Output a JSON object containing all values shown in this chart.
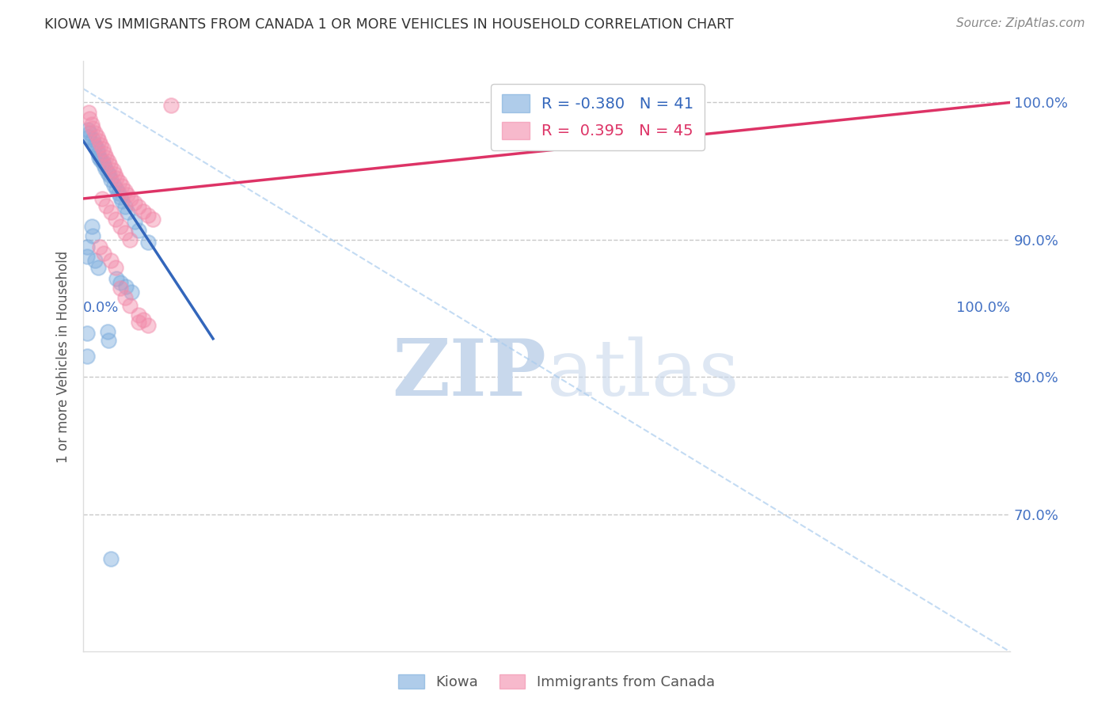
{
  "title": "KIOWA VS IMMIGRANTS FROM CANADA 1 OR MORE VEHICLES IN HOUSEHOLD CORRELATION CHART",
  "source": "Source: ZipAtlas.com",
  "ylabel": "1 or more Vehicles in Household",
  "watermark_zip": "ZIP",
  "watermark_atlas": "atlas",
  "legend_kiowa_R": "-0.380",
  "legend_kiowa_N": "41",
  "legend_canada_R": "0.395",
  "legend_canada_N": "45",
  "kiowa_color": "#7AABDC",
  "canada_color": "#F28BAA",
  "kiowa_scatter": [
    [
      0.005,
      0.98
    ],
    [
      0.006,
      0.975
    ],
    [
      0.007,
      0.978
    ],
    [
      0.01,
      0.973
    ],
    [
      0.012,
      0.97
    ],
    [
      0.013,
      0.968
    ],
    [
      0.015,
      0.966
    ],
    [
      0.016,
      0.963
    ],
    [
      0.017,
      0.96
    ],
    [
      0.019,
      0.958
    ],
    [
      0.021,
      0.957
    ],
    [
      0.022,
      0.955
    ],
    [
      0.024,
      0.952
    ],
    [
      0.026,
      0.949
    ],
    [
      0.028,
      0.947
    ],
    [
      0.03,
      0.944
    ],
    [
      0.033,
      0.94
    ],
    [
      0.036,
      0.937
    ],
    [
      0.038,
      0.934
    ],
    [
      0.04,
      0.931
    ],
    [
      0.042,
      0.928
    ],
    [
      0.045,
      0.924
    ],
    [
      0.048,
      0.92
    ],
    [
      0.055,
      0.913
    ],
    [
      0.06,
      0.907
    ],
    [
      0.07,
      0.898
    ],
    [
      0.009,
      0.91
    ],
    [
      0.01,
      0.903
    ],
    [
      0.004,
      0.895
    ],
    [
      0.004,
      0.888
    ],
    [
      0.013,
      0.885
    ],
    [
      0.016,
      0.88
    ],
    [
      0.036,
      0.872
    ],
    [
      0.04,
      0.869
    ],
    [
      0.046,
      0.866
    ],
    [
      0.052,
      0.862
    ],
    [
      0.026,
      0.833
    ],
    [
      0.027,
      0.827
    ],
    [
      0.004,
      0.832
    ],
    [
      0.004,
      0.815
    ],
    [
      0.03,
      0.668
    ]
  ],
  "canada_scatter": [
    [
      0.006,
      0.993
    ],
    [
      0.007,
      0.988
    ],
    [
      0.009,
      0.984
    ],
    [
      0.01,
      0.981
    ],
    [
      0.013,
      0.978
    ],
    [
      0.015,
      0.975
    ],
    [
      0.017,
      0.972
    ],
    [
      0.019,
      0.969
    ],
    [
      0.021,
      0.966
    ],
    [
      0.023,
      0.963
    ],
    [
      0.025,
      0.96
    ],
    [
      0.027,
      0.957
    ],
    [
      0.029,
      0.954
    ],
    [
      0.032,
      0.951
    ],
    [
      0.034,
      0.948
    ],
    [
      0.036,
      0.945
    ],
    [
      0.039,
      0.942
    ],
    [
      0.042,
      0.939
    ],
    [
      0.045,
      0.936
    ],
    [
      0.048,
      0.933
    ],
    [
      0.051,
      0.93
    ],
    [
      0.055,
      0.927
    ],
    [
      0.06,
      0.924
    ],
    [
      0.065,
      0.921
    ],
    [
      0.07,
      0.918
    ],
    [
      0.075,
      0.915
    ],
    [
      0.02,
      0.93
    ],
    [
      0.025,
      0.925
    ],
    [
      0.03,
      0.92
    ],
    [
      0.035,
      0.915
    ],
    [
      0.04,
      0.91
    ],
    [
      0.045,
      0.905
    ],
    [
      0.05,
      0.9
    ],
    [
      0.018,
      0.895
    ],
    [
      0.022,
      0.89
    ],
    [
      0.03,
      0.885
    ],
    [
      0.035,
      0.88
    ],
    [
      0.04,
      0.865
    ],
    [
      0.045,
      0.858
    ],
    [
      0.06,
      0.84
    ],
    [
      0.095,
      0.998
    ],
    [
      0.05,
      0.852
    ],
    [
      0.06,
      0.845
    ],
    [
      0.065,
      0.842
    ],
    [
      0.07,
      0.838
    ]
  ],
  "xlim": [
    0.0,
    1.0
  ],
  "ylim": [
    0.6,
    1.03
  ],
  "yticks": [
    1.0,
    0.9,
    0.8,
    0.7
  ],
  "ytick_labels": [
    "100.0%",
    "90.0%",
    "80.0%",
    "70.0%"
  ],
  "background_color": "#FFFFFF",
  "grid_color": "#C8C8C8",
  "title_color": "#333333",
  "axis_label_color": "#4472C4",
  "watermark_color": "#DDEEFF",
  "diagonal_color": "#AACCEE",
  "kiowa_line_color": "#3366BB",
  "canada_line_color": "#DD3366",
  "kiowa_line_x": [
    0.0,
    0.14
  ],
  "kiowa_line_y": [
    0.972,
    0.828
  ],
  "canada_line_x": [
    0.0,
    1.0
  ],
  "canada_line_y": [
    0.93,
    1.0
  ]
}
